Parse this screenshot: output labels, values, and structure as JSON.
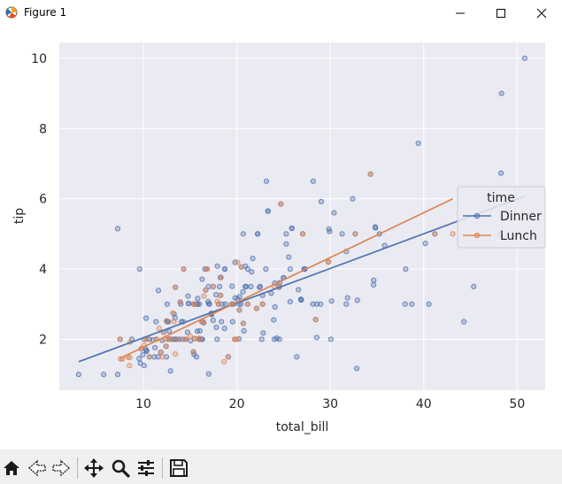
{
  "window": {
    "title": "Figure 1"
  },
  "toolbar": {
    "icons": [
      "home-icon",
      "back-arrow-icon",
      "forward-arrow-icon",
      "pan-icon",
      "zoom-icon",
      "configure-subplots-icon",
      "save-icon"
    ]
  },
  "chart_data": {
    "type": "scatter",
    "xlabel": "total_bill",
    "ylabel": "tip",
    "xlim": [
      1.0,
      53.0
    ],
    "ylim": [
      0.55,
      10.45
    ],
    "xticks": [
      10,
      20,
      30,
      40,
      50
    ],
    "yticks": [
      2,
      4,
      6,
      8,
      10
    ],
    "grid": true,
    "background": "#eaeaf2",
    "legend": {
      "title": "time",
      "placement": "right",
      "entries": [
        "Dinner",
        "Lunch"
      ]
    },
    "series": [
      {
        "name": "Dinner",
        "color": "#4c72b0",
        "points": [
          [
            3.07,
            1.0
          ],
          [
            5.75,
            1.0
          ],
          [
            7.25,
            1.0
          ],
          [
            7.25,
            5.15
          ],
          [
            7.51,
            2.0
          ],
          [
            8.77,
            2.0
          ],
          [
            9.55,
            1.45
          ],
          [
            9.6,
            4.0
          ],
          [
            9.68,
            1.32
          ],
          [
            9.94,
            1.56
          ],
          [
            10.07,
            1.25
          ],
          [
            10.27,
            1.71
          ],
          [
            10.33,
            1.67
          ],
          [
            10.34,
            1.66
          ],
          [
            10.63,
            2.0
          ],
          [
            10.65,
            1.5
          ],
          [
            11.02,
            1.98
          ],
          [
            11.24,
            1.76
          ],
          [
            11.35,
            2.5
          ],
          [
            11.38,
            2.0
          ],
          [
            11.59,
            1.5
          ],
          [
            11.61,
            3.39
          ],
          [
            12.02,
            1.97
          ],
          [
            12.16,
            2.2
          ],
          [
            12.46,
            1.5
          ],
          [
            12.54,
            2.5
          ],
          [
            12.69,
            2.0
          ],
          [
            12.74,
            2.01
          ],
          [
            12.9,
            1.1
          ],
          [
            13.03,
            2.0
          ],
          [
            13.13,
            2.0
          ],
          [
            13.28,
            2.72
          ],
          [
            13.37,
            2.0
          ],
          [
            13.42,
            3.48
          ],
          [
            13.81,
            2.0
          ],
          [
            14.07,
            2.5
          ],
          [
            14.15,
            2.0
          ],
          [
            14.26,
            2.5
          ],
          [
            14.31,
            4.0
          ],
          [
            14.52,
            2.0
          ],
          [
            14.73,
            2.2
          ],
          [
            14.78,
            3.23
          ],
          [
            14.83,
            3.02
          ],
          [
            15.04,
            1.96
          ],
          [
            15.36,
            1.64
          ],
          [
            15.42,
            1.57
          ],
          [
            15.69,
            3.0
          ],
          [
            15.77,
            2.23
          ],
          [
            15.81,
            3.16
          ],
          [
            15.95,
            2.0
          ],
          [
            16.0,
            2.0
          ],
          [
            16.04,
            2.24
          ],
          [
            16.29,
            3.71
          ],
          [
            16.31,
            2.0
          ],
          [
            16.45,
            2.47
          ],
          [
            16.58,
            4.0
          ],
          [
            16.93,
            3.07
          ],
          [
            16.97,
            3.5
          ],
          [
            16.99,
            1.01
          ],
          [
            17.07,
            3.0
          ],
          [
            17.26,
            2.74
          ],
          [
            17.29,
            2.71
          ],
          [
            17.46,
            2.54
          ],
          [
            17.78,
            3.27
          ],
          [
            17.81,
            2.34
          ],
          [
            17.89,
            2.0
          ],
          [
            17.92,
            4.08
          ],
          [
            18.15,
            3.5
          ],
          [
            18.24,
            3.76
          ],
          [
            18.29,
            3.76
          ],
          [
            18.35,
            2.5
          ],
          [
            18.43,
            3.0
          ],
          [
            18.69,
            2.31
          ],
          [
            18.71,
            4.0
          ],
          [
            19.44,
            3.0
          ],
          [
            19.49,
            3.51
          ],
          [
            19.65,
            3.0
          ],
          [
            19.77,
            2.0
          ],
          [
            19.81,
            4.19
          ],
          [
            19.82,
            3.18
          ],
          [
            20.08,
            3.15
          ],
          [
            20.23,
            2.01
          ],
          [
            20.29,
            3.21
          ],
          [
            20.45,
            3.0
          ],
          [
            20.65,
            3.35
          ],
          [
            20.69,
            2.45
          ],
          [
            20.76,
            2.24
          ],
          [
            20.9,
            3.5
          ],
          [
            21.01,
            3.5
          ],
          [
            21.16,
            3.0
          ],
          [
            21.58,
            3.92
          ],
          [
            21.7,
            4.3
          ],
          [
            22.12,
            2.88
          ],
          [
            22.23,
            5.0
          ],
          [
            22.42,
            3.48
          ],
          [
            22.49,
            3.5
          ],
          [
            22.75,
            3.25
          ],
          [
            22.82,
            2.18
          ],
          [
            23.1,
            4.0
          ],
          [
            23.33,
            5.65
          ],
          [
            23.68,
            3.31
          ],
          [
            23.95,
            2.55
          ],
          [
            24.01,
            2.0
          ],
          [
            24.06,
            3.6
          ],
          [
            24.08,
            2.92
          ],
          [
            24.27,
            2.03
          ],
          [
            24.55,
            2.0
          ],
          [
            24.59,
            3.61
          ],
          [
            24.71,
            5.85
          ],
          [
            25.0,
            3.75
          ],
          [
            25.28,
            5.0
          ],
          [
            25.29,
            4.71
          ],
          [
            25.56,
            4.34
          ],
          [
            25.71,
            4.0
          ],
          [
            25.89,
            5.16
          ],
          [
            26.41,
            1.5
          ],
          [
            26.59,
            3.41
          ],
          [
            26.86,
            3.14
          ],
          [
            26.88,
            3.12
          ],
          [
            27.05,
            5.0
          ],
          [
            27.2,
            4.0
          ],
          [
            27.28,
            4.0
          ],
          [
            28.15,
            3.0
          ],
          [
            28.17,
            6.5
          ],
          [
            28.44,
            2.56
          ],
          [
            28.55,
            2.05
          ],
          [
            28.97,
            3.0
          ],
          [
            29.03,
            5.92
          ],
          [
            29.85,
            5.14
          ],
          [
            29.93,
            5.07
          ],
          [
            30.06,
            2.0
          ],
          [
            30.14,
            3.09
          ],
          [
            30.4,
            5.6
          ],
          [
            31.27,
            5.0
          ],
          [
            31.71,
            4.5
          ],
          [
            31.85,
            3.18
          ],
          [
            32.4,
            6.0
          ],
          [
            32.68,
            5.0
          ],
          [
            32.83,
            1.17
          ],
          [
            32.9,
            3.11
          ],
          [
            34.3,
            6.7
          ],
          [
            34.63,
            3.55
          ],
          [
            34.65,
            3.68
          ],
          [
            34.81,
            5.2
          ],
          [
            35.26,
            5.0
          ],
          [
            35.83,
            4.67
          ],
          [
            38.01,
            3.0
          ],
          [
            38.07,
            4.0
          ],
          [
            38.73,
            3.0
          ],
          [
            39.42,
            7.58
          ],
          [
            40.17,
            4.73
          ],
          [
            40.55,
            3.0
          ],
          [
            44.3,
            2.5
          ],
          [
            45.35,
            3.5
          ],
          [
            48.17,
            5.0
          ],
          [
            48.27,
            6.73
          ],
          [
            48.33,
            9.0
          ],
          [
            50.81,
            10.0
          ],
          [
            20.27,
            2.83
          ],
          [
            20.49,
            4.06
          ],
          [
            20.92,
            4.08
          ],
          [
            16.66,
            3.4
          ],
          [
            21.5,
            3.5
          ],
          [
            15.98,
            3.0
          ],
          [
            13.39,
            2.61
          ],
          [
            11.87,
            1.63
          ],
          [
            12.66,
            2.5
          ],
          [
            15.38,
            3.0
          ],
          [
            25.0,
            3.75
          ],
          [
            16.82,
            4.0
          ],
          [
            17.47,
            3.5
          ],
          [
            19.08,
            1.5
          ],
          [
            18.26,
            3.25
          ],
          [
            15.53,
            3.0
          ],
          [
            16.27,
            2.5
          ],
          [
            18.78,
            3.0
          ],
          [
            21.16,
            4.0
          ],
          [
            13.0,
            2.0
          ],
          [
            10.09,
            2.0
          ],
          [
            14.0,
            3.0
          ],
          [
            22.67,
            2.0
          ],
          [
            14.48,
            2.0
          ],
          [
            20.23,
            3.0
          ],
          [
            19.55,
            2.5
          ],
          [
            23.17,
            6.5
          ],
          [
            28.55,
            3.0
          ],
          [
            18.04,
            3.0
          ],
          [
            12.54,
            3.0
          ],
          [
            15.81,
            3.0
          ],
          [
            16.21,
            2.0
          ],
          [
            12.43,
            1.8
          ],
          [
            22.76,
            3.0
          ],
          [
            31.71,
            3.0
          ],
          [
            25.71,
            3.07
          ],
          [
            16.0,
            2.0
          ],
          [
            12.76,
            2.23
          ],
          [
            15.48,
            2.02
          ],
          [
            29.8,
            4.2
          ],
          [
            34.83,
            5.17
          ],
          [
            26.88,
            3.12
          ],
          [
            13.94,
            3.06
          ],
          [
            9.78,
            1.73
          ],
          [
            11.17,
            1.5
          ],
          [
            10.29,
            2.6
          ],
          [
            13.51,
            2.0
          ],
          [
            18.71,
            4.0
          ],
          [
            12.48,
            2.52
          ],
          [
            16.99,
            3.01
          ],
          [
            22.23,
            5.0
          ],
          [
            41.19,
            5.0
          ],
          [
            25.89,
            5.16
          ],
          [
            14.83,
            3.02
          ],
          [
            15.69,
            1.5
          ],
          [
            17.29,
            2.71
          ],
          [
            27.28,
            4.0
          ],
          [
            24.52,
            3.48
          ],
          [
            20.69,
            5.0
          ],
          [
            23.33,
            5.65
          ]
        ]
      },
      {
        "name": "Lunch",
        "color": "#dd8452",
        "points": [
          [
            7.51,
            2.0
          ],
          [
            7.56,
            1.44
          ],
          [
            7.74,
            1.44
          ],
          [
            8.35,
            1.5
          ],
          [
            8.51,
            1.25
          ],
          [
            8.52,
            1.48
          ],
          [
            8.58,
            1.92
          ],
          [
            9.78,
            1.73
          ],
          [
            10.07,
            1.83
          ],
          [
            10.33,
            2.0
          ],
          [
            10.34,
            2.0
          ],
          [
            10.65,
            1.5
          ],
          [
            11.38,
            2.0
          ],
          [
            11.69,
            2.31
          ],
          [
            11.87,
            1.63
          ],
          [
            12.03,
            1.5
          ],
          [
            12.16,
            2.2
          ],
          [
            12.26,
            2.0
          ],
          [
            12.43,
            1.8
          ],
          [
            12.48,
            2.52
          ],
          [
            12.74,
            2.01
          ],
          [
            13.0,
            2.0
          ],
          [
            13.03,
            2.0
          ],
          [
            13.16,
            2.75
          ],
          [
            13.27,
            2.5
          ],
          [
            13.42,
            3.48
          ],
          [
            13.42,
            1.58
          ],
          [
            13.81,
            2.0
          ],
          [
            13.94,
            3.06
          ],
          [
            14.31,
            4.0
          ],
          [
            14.48,
            2.0
          ],
          [
            14.52,
            2.0
          ],
          [
            15.01,
            2.09
          ],
          [
            15.36,
            1.64
          ],
          [
            15.38,
            3.0
          ],
          [
            15.48,
            2.02
          ],
          [
            15.53,
            3.0
          ],
          [
            15.98,
            2.03
          ],
          [
            16.0,
            2.0
          ],
          [
            16.27,
            2.5
          ],
          [
            16.4,
            2.5
          ],
          [
            16.47,
            3.23
          ],
          [
            16.66,
            3.4
          ],
          [
            16.76,
            4.0
          ],
          [
            16.82,
            4.0
          ],
          [
            17.47,
            3.5
          ],
          [
            17.92,
            3.08
          ],
          [
            18.04,
            3.0
          ],
          [
            18.26,
            3.25
          ],
          [
            18.29,
            3.76
          ],
          [
            18.64,
            1.36
          ],
          [
            19.08,
            1.5
          ],
          [
            19.44,
            3.0
          ],
          [
            19.77,
            2.0
          ],
          [
            20.0,
            2.0
          ],
          [
            20.08,
            4.19
          ],
          [
            20.27,
            2.83
          ],
          [
            20.49,
            4.06
          ],
          [
            20.69,
            2.45
          ],
          [
            21.16,
            3.0
          ],
          [
            22.12,
            2.88
          ],
          [
            22.76,
            3.0
          ],
          [
            24.01,
            3.5
          ],
          [
            24.71,
            5.85
          ],
          [
            24.55,
            3.51
          ],
          [
            27.05,
            5.0
          ],
          [
            28.44,
            2.56
          ],
          [
            29.8,
            4.2
          ],
          [
            32.68,
            5.0
          ],
          [
            34.3,
            6.7
          ],
          [
            41.19,
            5.0
          ],
          [
            43.11,
            5.0
          ]
        ]
      }
    ],
    "regression": [
      {
        "name": "Dinner",
        "x": [
          3.07,
          50.81
        ],
        "y": [
          1.36,
          6.07
        ]
      },
      {
        "name": "Lunch",
        "x": [
          7.51,
          43.11
        ],
        "y": [
          1.46,
          6.0
        ]
      }
    ]
  }
}
